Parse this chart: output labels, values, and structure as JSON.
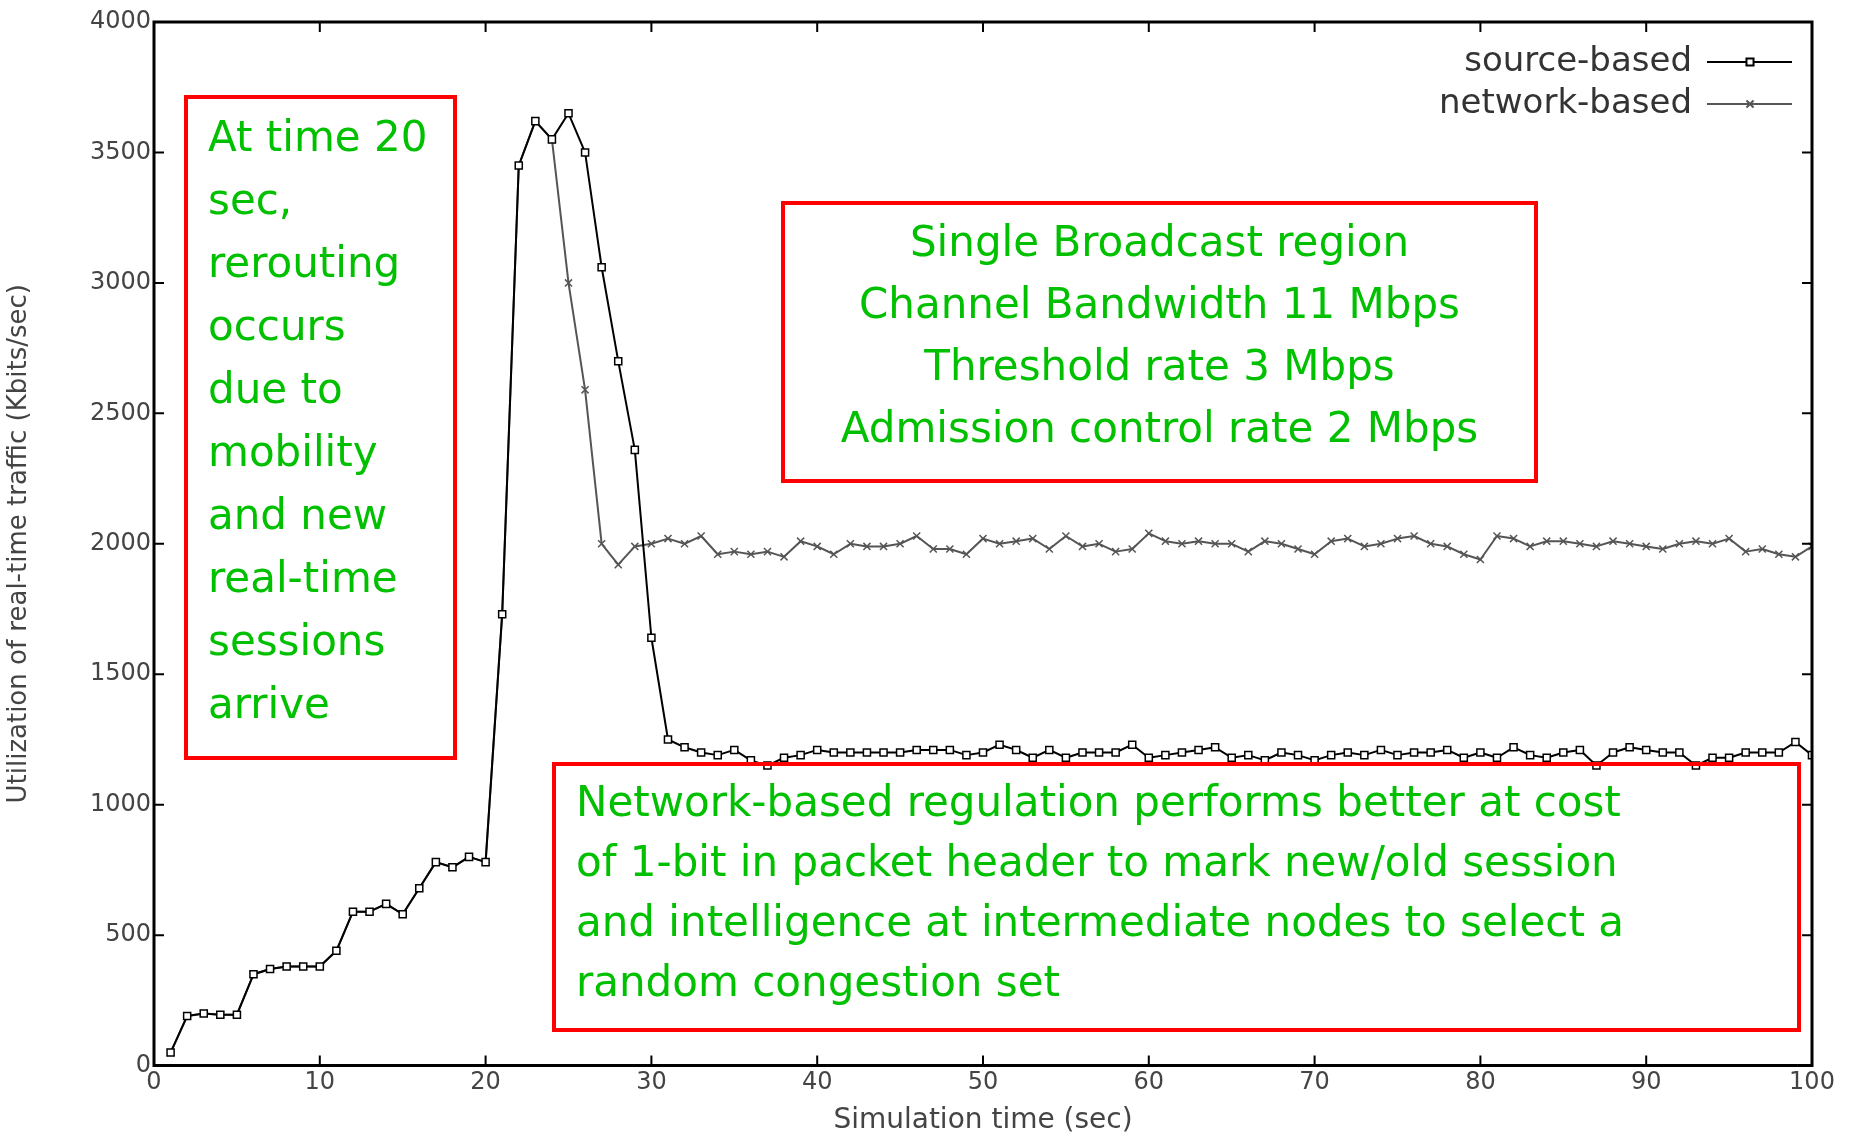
{
  "chart_data": {
    "type": "line",
    "xlabel": "Simulation time (sec)",
    "ylabel": "Utilization of real-time traffic (Kbits/sec)",
    "xlim": [
      0,
      100
    ],
    "xticks": [
      0,
      10,
      20,
      30,
      40,
      50,
      60,
      70,
      80,
      90,
      100
    ],
    "ylim": [
      0,
      4000
    ],
    "yticks": [
      0,
      500,
      1000,
      1500,
      2000,
      2500,
      3000,
      3500,
      4000
    ],
    "grid": false,
    "legend": "top right",
    "x": [
      1,
      2,
      3,
      4,
      5,
      6,
      7,
      8,
      9,
      10,
      11,
      12,
      13,
      14,
      15,
      16,
      17,
      18,
      19,
      20,
      21,
      22,
      23,
      24,
      25,
      26,
      27,
      28,
      29,
      30,
      31,
      32,
      33,
      34,
      35,
      36,
      37,
      38,
      39,
      40,
      41,
      42,
      43,
      44,
      45,
      46,
      47,
      48,
      49,
      50,
      51,
      52,
      53,
      54,
      55,
      56,
      57,
      58,
      59,
      60,
      61,
      62,
      63,
      64,
      65,
      66,
      67,
      68,
      69,
      70,
      71,
      72,
      73,
      74,
      75,
      76,
      77,
      78,
      79,
      80,
      81,
      82,
      83,
      84,
      85,
      86,
      87,
      88,
      89,
      90,
      91,
      92,
      93,
      94,
      95,
      96,
      97,
      98,
      99,
      100
    ],
    "series": [
      {
        "name": "source-based",
        "color": "#000000",
        "marker": "square",
        "values": [
          50,
          190,
          200,
          195,
          195,
          350,
          370,
          380,
          380,
          380,
          440,
          590,
          590,
          620,
          580,
          680,
          780,
          760,
          800,
          780,
          1730,
          3450,
          3620,
          3550,
          3650,
          3500,
          3060,
          2700,
          2360,
          1640,
          1250,
          1220,
          1200,
          1190,
          1210,
          1170,
          1150,
          1180,
          1190,
          1210,
          1200,
          1200,
          1200,
          1200,
          1200,
          1210,
          1210,
          1210,
          1190,
          1200,
          1230,
          1210,
          1180,
          1210,
          1180,
          1200,
          1200,
          1200,
          1230,
          1180,
          1190,
          1200,
          1210,
          1220,
          1180,
          1190,
          1170,
          1200,
          1190,
          1170,
          1190,
          1200,
          1190,
          1210,
          1190,
          1200,
          1200,
          1210,
          1180,
          1200,
          1180,
          1220,
          1190,
          1180,
          1200,
          1210,
          1150,
          1200,
          1220,
          1210,
          1200,
          1200,
          1150,
          1180,
          1180,
          1200,
          1200,
          1200,
          1240,
          1190
        ]
      },
      {
        "name": "network-based",
        "color": "#555555",
        "marker": "cross",
        "values": [
          50,
          190,
          200,
          195,
          195,
          350,
          370,
          380,
          380,
          380,
          440,
          590,
          590,
          620,
          580,
          680,
          780,
          760,
          800,
          780,
          1730,
          3450,
          3620,
          3550,
          3000,
          2590,
          2000,
          1920,
          1990,
          2000,
          2020,
          2000,
          2030,
          1960,
          1970,
          1960,
          1970,
          1950,
          2010,
          1990,
          1960,
          2000,
          1990,
          1990,
          2000,
          2030,
          1980,
          1980,
          1960,
          2020,
          2000,
          2010,
          2020,
          1980,
          2030,
          1990,
          2000,
          1970,
          1980,
          2040,
          2010,
          2000,
          2010,
          2000,
          2000,
          1970,
          2010,
          2000,
          1980,
          1960,
          2010,
          2020,
          1990,
          2000,
          2020,
          2030,
          2000,
          1990,
          1960,
          1940,
          2030,
          2020,
          1990,
          2010,
          2010,
          2000,
          1990,
          2010,
          2000,
          1990,
          1980,
          2000,
          2010,
          2000,
          2020,
          1970,
          1980,
          1960,
          1950,
          1990
        ]
      }
    ],
    "annotations": [
      "At time 20 sec, rerouting occurs due to mobility and new real-time sessions arrive",
      "Single Broadcast region\nChannel Bandwidth 11 Mbps\nThreshold rate 3 Mbps\nAdmission control rate 2 Mbps",
      "Network-based regulation performs better at cost of 1-bit in packet header to mark new/old session and intelligence at intermediate nodes to select a random congestion set"
    ]
  }
}
